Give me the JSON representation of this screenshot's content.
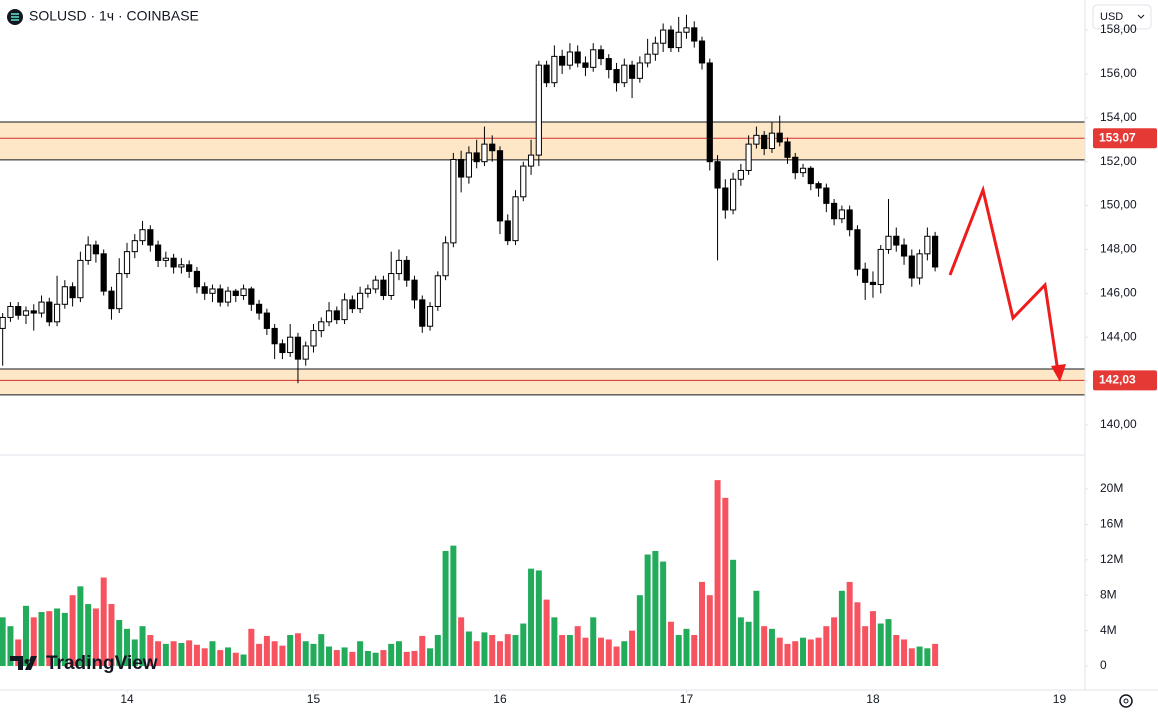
{
  "chart_data": {
    "type": "candlestick",
    "title": "SOLUSD · 1ч · COINBASE",
    "currency_button": "USD",
    "logo": "TradingView",
    "up_color": "#ffffff",
    "down_color": "#000000",
    "x": [
      13.3333,
      13.375,
      13.4167,
      13.4583,
      13.5,
      13.5417,
      13.5833,
      13.625,
      13.6667,
      13.7083,
      13.75,
      13.7917,
      13.8333,
      13.875,
      13.9167,
      13.9583,
      14.0,
      14.0417,
      14.0833,
      14.125,
      14.1667,
      14.2083,
      14.25,
      14.2917,
      14.3333,
      14.375,
      14.4167,
      14.4583,
      14.5,
      14.5417,
      14.5833,
      14.625,
      14.6667,
      14.7083,
      14.75,
      14.7917,
      14.8333,
      14.875,
      14.9167,
      14.9583,
      15.0,
      15.0417,
      15.0833,
      15.125,
      15.1667,
      15.2083,
      15.25,
      15.2917,
      15.3333,
      15.375,
      15.4167,
      15.4583,
      15.5,
      15.5417,
      15.5833,
      15.625,
      15.6667,
      15.7083,
      15.75,
      15.7917,
      15.8333,
      15.875,
      15.9167,
      15.9583,
      16.0,
      16.0417,
      16.0833,
      16.125,
      16.1667,
      16.2083,
      16.25,
      16.2917,
      16.3333,
      16.375,
      16.4167,
      16.4583,
      16.5,
      16.5417,
      16.5833,
      16.625,
      16.6667,
      16.7083,
      16.75,
      16.7917,
      16.8333,
      16.875,
      16.9167,
      16.9583,
      17.0,
      17.0417,
      17.0833,
      17.125,
      17.1667,
      17.2083,
      17.25,
      17.2917,
      17.3333,
      17.375,
      17.4167,
      17.4583,
      17.5,
      17.5417,
      17.5833,
      17.625,
      17.6667,
      17.7083,
      17.75,
      17.7917,
      17.8333,
      17.875,
      17.9167,
      17.9583,
      18.0,
      18.0417,
      18.0833,
      18.125,
      18.1667,
      18.2083,
      18.25,
      18.2917,
      18.3333
    ],
    "open": [
      144.4,
      144.9,
      145.4,
      145.0,
      145.2,
      145.1,
      145.6,
      144.7,
      145.5,
      146.3,
      145.8,
      147.5,
      148.2,
      147.8,
      146.1,
      145.3,
      146.9,
      147.9,
      148.4,
      148.9,
      148.2,
      147.5,
      147.6,
      147.2,
      147.3,
      147.0,
      146.3,
      146.0,
      146.2,
      145.6,
      146.1,
      145.9,
      146.2,
      145.5,
      145.1,
      144.4,
      143.7,
      143.3,
      144.0,
      143.0,
      143.6,
      144.3,
      144.7,
      145.2,
      144.8,
      145.7,
      145.3,
      146.0,
      146.2,
      146.6,
      145.9,
      146.9,
      147.5,
      146.6,
      145.7,
      144.5,
      145.4,
      146.8,
      148.3,
      152.1,
      151.3,
      152.4,
      152.0,
      152.8,
      152.5,
      149.3,
      148.4,
      150.4,
      151.8,
      152.3,
      156.4,
      155.6,
      156.8,
      156.4,
      157.0,
      156.5,
      156.3,
      157.1,
      156.7,
      156.2,
      155.6,
      156.4,
      155.8,
      156.5,
      156.9,
      157.4,
      158.0,
      157.2,
      157.9,
      158.1,
      157.5,
      156.5,
      152.0,
      150.8,
      149.8,
      151.2,
      151.6,
      152.8,
      153.2,
      152.6,
      153.3,
      152.9,
      152.2,
      151.5,
      151.7,
      151.0,
      150.8,
      150.1,
      149.4,
      149.8,
      148.9,
      147.1,
      146.5,
      146.4,
      148.0,
      148.6,
      148.2,
      147.7,
      146.7,
      147.8,
      148.6
    ],
    "high": [
      145.1,
      145.6,
      145.6,
      145.4,
      145.5,
      145.9,
      145.8,
      146.8,
      146.6,
      146.5,
      147.9,
      148.6,
      148.4,
      148.0,
      146.3,
      147.6,
      148.3,
      148.7,
      149.3,
      149.1,
      148.4,
      147.9,
      147.8,
      147.6,
      147.5,
      147.2,
      146.5,
      146.4,
      146.4,
      146.3,
      146.2,
      146.4,
      146.3,
      145.7,
      145.3,
      144.6,
      143.9,
      144.6,
      144.2,
      143.8,
      144.6,
      144.9,
      145.6,
      145.4,
      146.0,
      145.9,
      146.3,
      146.4,
      146.8,
      146.8,
      147.9,
      148.0,
      147.7,
      146.8,
      145.9,
      145.6,
      147.0,
      148.6,
      152.4,
      152.5,
      152.7,
      153.0,
      153.6,
      153.2,
      152.7,
      149.6,
      150.7,
      152.0,
      153.0,
      156.6,
      156.6,
      157.3,
      157.1,
      157.4,
      157.3,
      156.8,
      157.4,
      157.3,
      156.9,
      156.5,
      156.7,
      156.6,
      156.8,
      157.6,
      157.7,
      158.3,
      158.2,
      158.6,
      158.7,
      158.4,
      157.7,
      156.7,
      152.3,
      151.2,
      151.5,
      151.9,
      153.2,
      153.6,
      153.4,
      153.8,
      154.1,
      153.1,
      152.4,
      151.9,
      151.8,
      151.1,
      151.0,
      150.3,
      150.0,
      150.0,
      149.1,
      147.4,
      147.0,
      148.2,
      150.3,
      149.0,
      148.5,
      148.0,
      148.0,
      149.0,
      148.8
    ],
    "low": [
      142.7,
      144.7,
      144.8,
      144.6,
      144.3,
      144.9,
      144.5,
      144.5,
      145.3,
      145.4,
      145.6,
      147.3,
      147.4,
      145.9,
      144.8,
      145.1,
      146.7,
      147.6,
      148.2,
      147.9,
      147.2,
      147.2,
      146.9,
      146.9,
      146.7,
      146.0,
      145.7,
      145.6,
      145.4,
      145.4,
      145.6,
      145.7,
      145.2,
      144.8,
      144.1,
      143.0,
      143.0,
      143.1,
      141.9,
      142.7,
      143.3,
      144.0,
      144.5,
      144.6,
      144.6,
      145.1,
      145.1,
      145.8,
      146.0,
      145.7,
      145.7,
      146.6,
      146.3,
      145.3,
      144.2,
      144.3,
      145.2,
      146.6,
      148.1,
      150.6,
      151.0,
      151.7,
      151.8,
      152.0,
      148.7,
      148.2,
      148.2,
      150.2,
      151.4,
      151.8,
      155.4,
      155.4,
      156.0,
      156.2,
      156.3,
      155.9,
      156.1,
      156.4,
      155.8,
      155.2,
      155.4,
      154.9,
      155.6,
      156.3,
      156.6,
      157.0,
      157.0,
      157.0,
      157.6,
      157.2,
      156.2,
      151.6,
      147.5,
      149.4,
      149.6,
      150.9,
      151.4,
      152.6,
      152.3,
      152.4,
      152.7,
      151.9,
      151.2,
      151.3,
      150.7,
      150.4,
      149.7,
      149.1,
      149.2,
      148.6,
      146.8,
      145.7,
      145.8,
      146.0,
      147.8,
      147.9,
      147.3,
      146.3,
      146.4,
      147.5,
      147.0
    ],
    "close": [
      144.9,
      145.4,
      145.0,
      145.2,
      145.1,
      145.6,
      144.7,
      145.5,
      146.3,
      145.8,
      147.5,
      148.2,
      147.8,
      146.1,
      145.3,
      146.9,
      147.9,
      148.4,
      148.9,
      148.2,
      147.5,
      147.6,
      147.2,
      147.3,
      147.0,
      146.3,
      146.0,
      146.2,
      145.6,
      146.1,
      145.9,
      146.2,
      145.5,
      145.1,
      144.4,
      143.7,
      143.3,
      144.0,
      143.0,
      143.6,
      144.3,
      144.7,
      145.2,
      144.8,
      145.7,
      145.3,
      146.0,
      146.2,
      146.6,
      145.9,
      146.9,
      147.5,
      146.6,
      145.7,
      144.5,
      145.4,
      146.8,
      148.3,
      152.1,
      151.3,
      152.4,
      152.0,
      152.8,
      152.5,
      149.3,
      148.4,
      150.4,
      151.8,
      152.3,
      156.4,
      155.6,
      156.8,
      156.4,
      157.0,
      156.5,
      156.3,
      157.1,
      156.7,
      156.2,
      155.6,
      156.4,
      155.8,
      156.5,
      156.9,
      157.4,
      158.0,
      157.2,
      157.9,
      158.1,
      157.5,
      156.5,
      152.0,
      150.8,
      149.8,
      151.2,
      151.6,
      152.8,
      153.2,
      152.6,
      153.3,
      152.9,
      152.2,
      151.5,
      151.7,
      151.0,
      150.8,
      150.1,
      149.4,
      149.8,
      148.9,
      147.1,
      146.5,
      146.4,
      148.0,
      148.6,
      148.2,
      147.7,
      146.7,
      147.8,
      148.6,
      147.2
    ],
    "xlim": [
      13.319,
      19.137
    ],
    "xticks": [
      14,
      15,
      16,
      17,
      18,
      19
    ],
    "ylim": [
      138.63,
      159.37
    ],
    "yticks": [
      {
        "value": 140,
        "label": "140,00"
      },
      {
        "value": 142,
        "label": "142,00"
      },
      {
        "value": 144,
        "label": "144,00"
      },
      {
        "value": 146,
        "label": "146,00"
      },
      {
        "value": 148,
        "label": "148,00"
      },
      {
        "value": 150,
        "label": "150,00"
      },
      {
        "value": 152,
        "label": "152,00"
      },
      {
        "value": 154,
        "label": "154,00"
      },
      {
        "value": 156,
        "label": "156,00"
      },
      {
        "value": 158,
        "label": "158,00"
      }
    ],
    "zones": [
      {
        "from": 152.08,
        "to": 153.81,
        "level": {
          "value": 153.07,
          "label": "153,07"
        }
      },
      {
        "from": 141.37,
        "to": 142.55,
        "level": {
          "value": 142.03,
          "label": "142,03"
        }
      }
    ],
    "volume": {
      "up_color": "#22ab5b",
      "down_color": "#f7525f",
      "values": [
        5500000,
        4500000,
        3000000,
        6800000,
        5500000,
        6100000,
        6200000,
        6500000,
        6000000,
        8000000,
        9000000,
        7000000,
        6500000,
        10000000,
        7000000,
        5200000,
        4200000,
        3000000,
        4500000,
        3500000,
        2800000,
        2500000,
        2800000,
        2600000,
        2900000,
        2400000,
        2000000,
        2800000,
        1800000,
        2100000,
        1500000,
        1300000,
        4200000,
        2500000,
        3400000,
        2800000,
        2300000,
        3500000,
        3700000,
        2800000,
        2500000,
        3600000,
        2200000,
        1800000,
        2100000,
        1600000,
        2800000,
        1700000,
        1500000,
        1800000,
        2500000,
        2800000,
        1600000,
        1700000,
        3400000,
        2000000,
        3500000,
        13000000,
        13600000,
        5500000,
        3900000,
        2800000,
        3800000,
        3500000,
        2800000,
        3600000,
        3500000,
        4800000,
        11000000,
        10800000,
        7500000,
        5500000,
        3500000,
        3500000,
        4500000,
        3200000,
        5500000,
        3200000,
        3000000,
        2200000,
        2800000,
        4000000,
        8000000,
        12600000,
        13000000,
        11800000,
        5000000,
        3500000,
        4200000,
        3500000,
        9500000,
        8000000,
        21000000,
        19000000,
        12000000,
        5500000,
        5000000,
        8500000,
        4500000,
        4200000,
        3200000,
        2500000,
        2800000,
        3200000,
        3000000,
        3200000,
        4500000,
        5500000,
        8500000,
        9500000,
        7200000,
        4500000,
        6200000,
        4800000,
        5300000,
        3500000,
        3000000,
        2000000,
        2200000,
        2000000,
        2500000
      ],
      "ylim": [
        -2710000,
        23840000
      ],
      "yticks": [
        0,
        {
          "value": 4000000,
          "label": "4M"
        },
        {
          "value": 8000000,
          "label": "8M"
        },
        {
          "value": 12000000,
          "label": "12M"
        },
        {
          "value": 16000000,
          "label": "16M"
        },
        {
          "value": 20000000,
          "label": "20M"
        }
      ]
    }
  }
}
